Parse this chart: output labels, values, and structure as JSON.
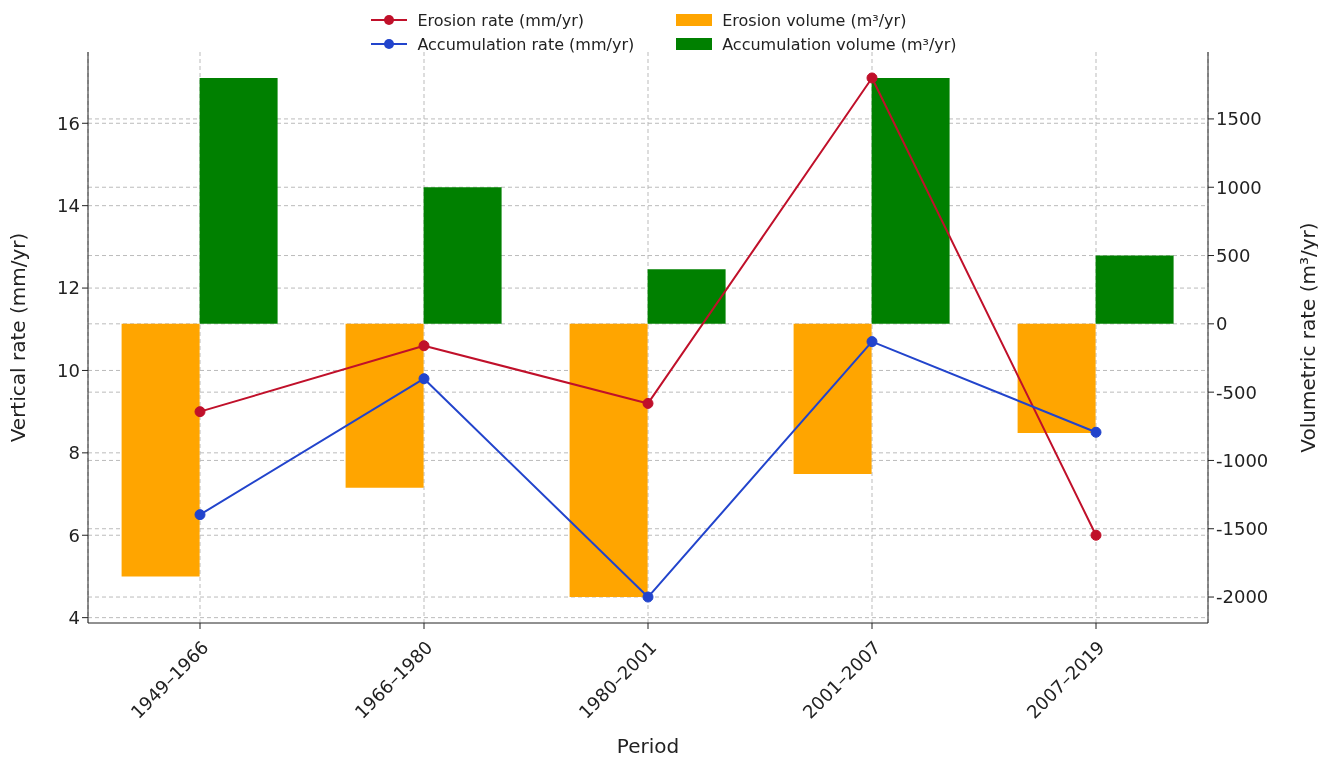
{
  "chart_data": {
    "type": "bar",
    "xlabel": "Period",
    "ylabel": "Vertical rate (mm/yr)",
    "y2label": "Volumetric rate (m³/yr)",
    "categories": [
      "1949–1966",
      "1966–1980",
      "1980–2001",
      "2001–2007",
      "2007–2019"
    ],
    "series": [
      {
        "name": "Erosion rate (mm/yr)",
        "type": "line",
        "color": "#c0102a",
        "values": [
          9.0,
          10.6,
          9.2,
          17.1,
          6.0
        ]
      },
      {
        "name": "Accumulation rate (mm/yr)",
        "type": "line",
        "color": "#2244cc",
        "values": [
          6.5,
          9.8,
          4.5,
          10.7,
          8.5
        ]
      },
      {
        "name": "Erosion volume (m³/yr)",
        "axis": "y2",
        "color": "#ffa500",
        "values": [
          -1850,
          -1200,
          -2000,
          -1100,
          -800
        ]
      },
      {
        "name": "Accumulation volume (m³/yr)",
        "axis": "y2",
        "color": "#008000",
        "values": [
          1800,
          1000,
          400,
          1800,
          500
        ]
      }
    ],
    "ylim": [
      3.87,
      17.73
    ],
    "yticks": [
      4,
      6,
      8,
      10,
      12,
      14,
      16
    ],
    "y2lim": [
      -2190,
      1990
    ],
    "y2ticks": [
      -2000,
      -1500,
      -1000,
      -500,
      0,
      500,
      1000,
      1500
    ],
    "grid": true,
    "legend": "top",
    "marker": "circle",
    "line_style": "solid"
  }
}
